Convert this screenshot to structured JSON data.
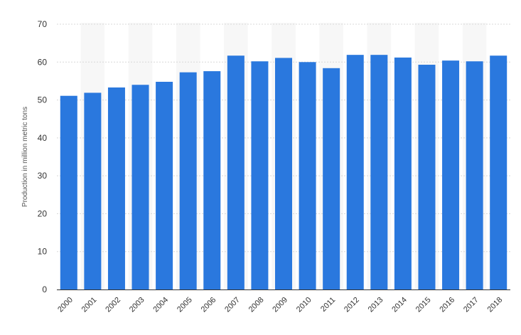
{
  "chart_data": {
    "type": "bar",
    "title": "",
    "xlabel": "",
    "ylabel": "Production in million metric tons",
    "ylim": [
      0,
      70
    ],
    "yticks": [
      0,
      10,
      20,
      30,
      40,
      50,
      60,
      70
    ],
    "grid": true,
    "legend": "none",
    "categories": [
      "2000",
      "2001",
      "2002",
      "2003",
      "2004",
      "2005",
      "2006",
      "2007",
      "2008",
      "2009",
      "2010",
      "2011",
      "2012",
      "2013",
      "2014",
      "2015",
      "2016",
      "2017",
      "2018"
    ],
    "values": [
      51.1,
      51.9,
      53.3,
      54.0,
      54.8,
      57.3,
      57.6,
      61.7,
      60.2,
      61.1,
      60.0,
      58.4,
      61.9,
      61.9,
      61.2,
      59.3,
      60.4,
      60.2,
      61.7
    ],
    "colors": {
      "bar": "#2a78de",
      "band": "#f7f7f7",
      "grid": "#d8d8d8",
      "axis": "#333333"
    }
  }
}
